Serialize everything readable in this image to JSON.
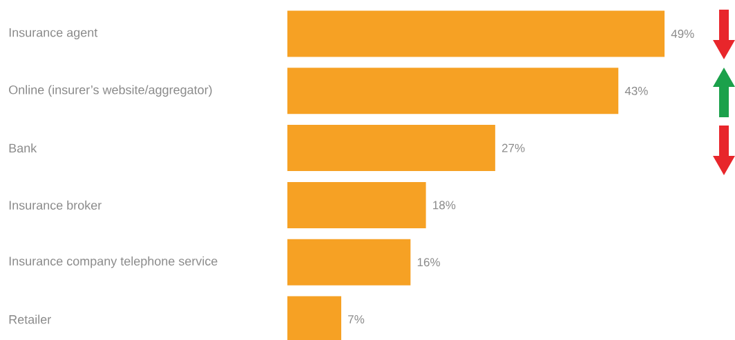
{
  "chart_data": {
    "type": "bar",
    "orientation": "horizontal",
    "color": "#f6a124",
    "categories": [
      "Insurance agent",
      "Online (insurer’s website/aggregator)",
      "Bank",
      "Insurance broker",
      "Insurance company telephone service",
      "Retailer"
    ],
    "values": [
      49,
      43,
      27,
      18,
      16,
      7
    ],
    "value_labels": [
      "49%",
      "43%",
      "27%",
      "18%",
      "16%",
      "7%"
    ]
  }
}
